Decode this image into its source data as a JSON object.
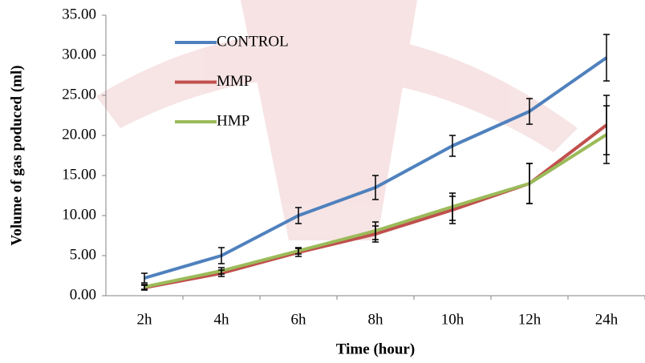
{
  "chart_data": {
    "type": "line",
    "x_label": "Time (hour)",
    "y_label": "Volume of gas poduced (ml)",
    "categories": [
      "2h",
      "4h",
      "6h",
      "8h",
      "10h",
      "12h",
      "24h"
    ],
    "series": [
      {
        "name": "CONTROL",
        "color": "#4f81bd",
        "values": [
          2.2,
          5.0,
          10.0,
          13.5,
          18.7,
          23.0,
          29.7
        ],
        "errors": [
          0.6,
          1.0,
          1.0,
          1.5,
          1.3,
          1.6,
          2.9
        ]
      },
      {
        "name": "MMP",
        "color": "#c0504d",
        "values": [
          1.0,
          2.8,
          5.4,
          7.7,
          10.7,
          14.0,
          21.3
        ],
        "errors": [
          0.3,
          0.4,
          0.5,
          1.0,
          1.7,
          2.5,
          3.7
        ]
      },
      {
        "name": "HMP",
        "color": "#9bbb59",
        "values": [
          1.1,
          3.1,
          5.6,
          8.1,
          11.1,
          14.0,
          20.1
        ],
        "errors": [
          0.3,
          0.4,
          0.4,
          1.1,
          1.7,
          2.5,
          3.6
        ]
      }
    ],
    "ylim": [
      0,
      35
    ],
    "yticks": [
      {
        "value": 0,
        "label": "0.00"
      },
      {
        "value": 5,
        "label": "5.00"
      },
      {
        "value": 10,
        "label": "10.00"
      },
      {
        "value": 15,
        "label": "15.00"
      },
      {
        "value": 20,
        "label": "20.00"
      },
      {
        "value": 25,
        "label": "25.00"
      },
      {
        "value": 30,
        "label": "30.00"
      },
      {
        "value": 35,
        "label": "35.00"
      }
    ],
    "legend": "upper-left",
    "grid": false
  }
}
